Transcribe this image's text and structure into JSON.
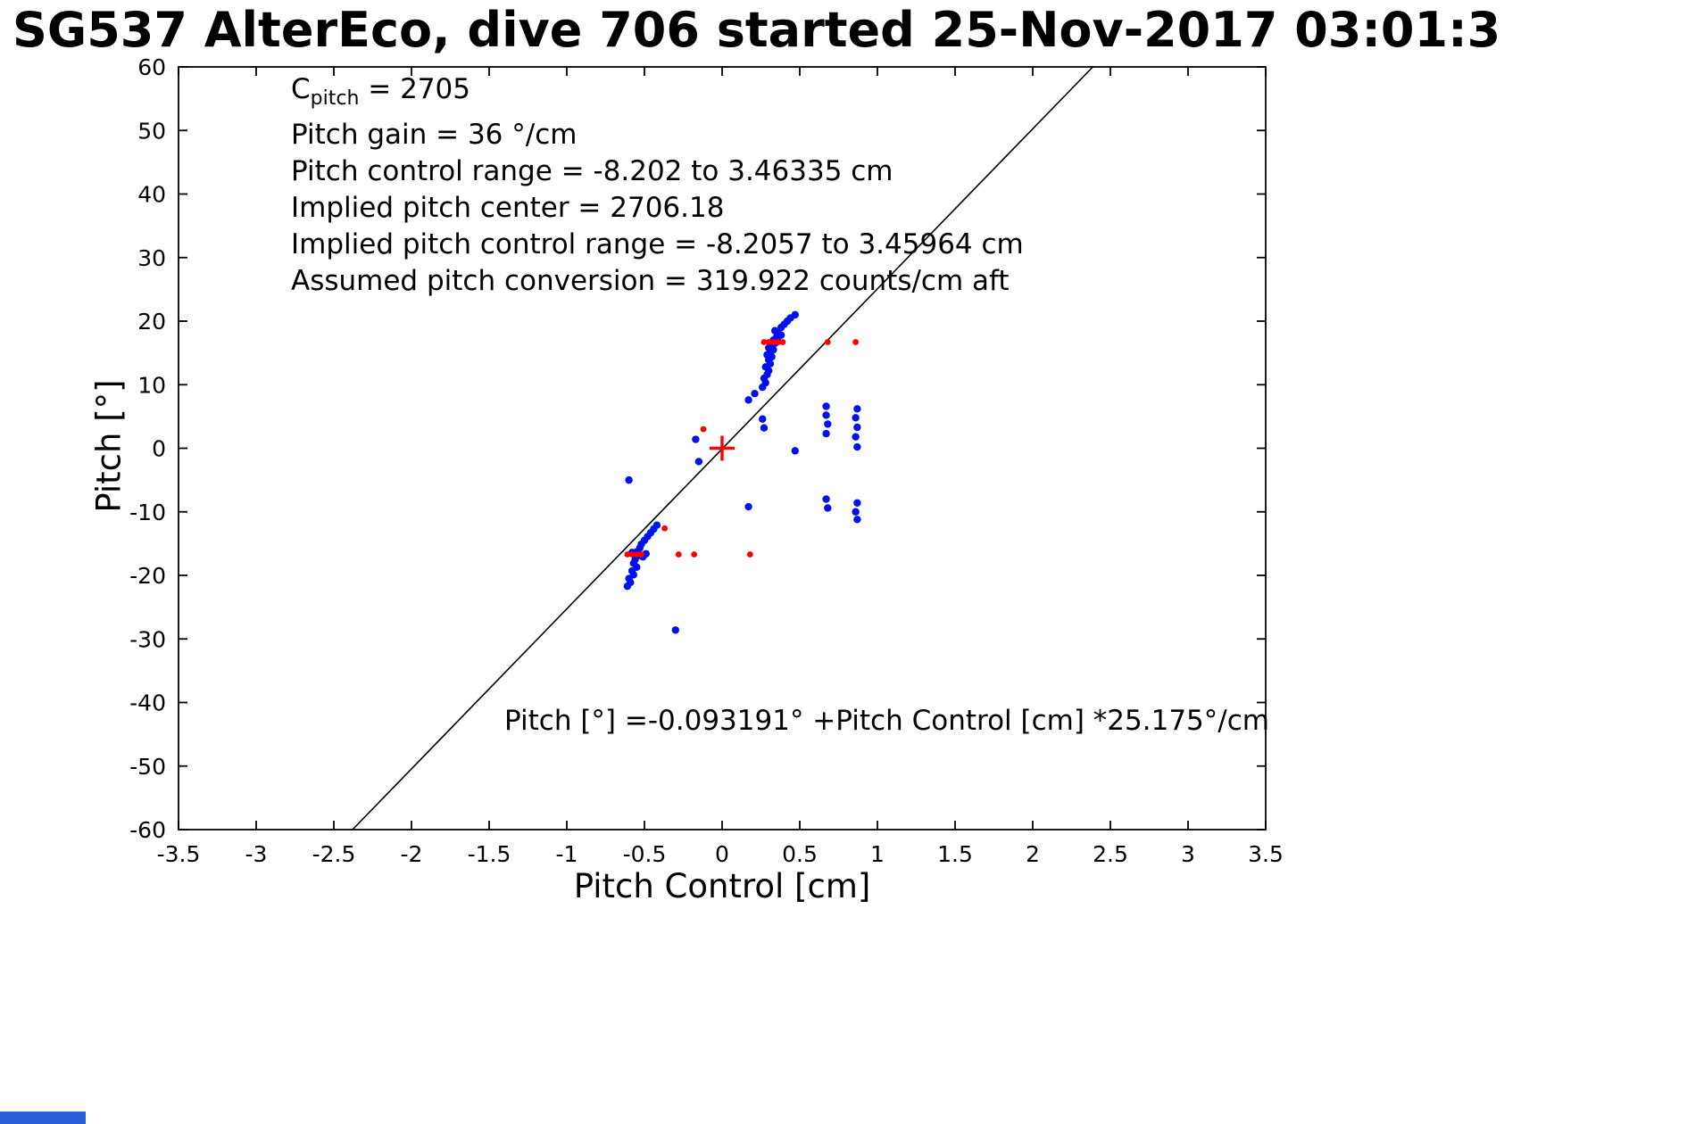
{
  "ui": {
    "background_color": "#ffffff",
    "corner_fragment_color": "#2a5ed9"
  },
  "chart_data": {
    "type": "scatter",
    "title": "SG537 AlterEco, dive 706 started 25-Nov-2017 03:01:3",
    "xlabel": "Pitch Control [cm]",
    "ylabel": "Pitch [°]",
    "xlim": [
      -3.5,
      3.5
    ],
    "ylim": [
      -60,
      60
    ],
    "xticks": [
      -3.5,
      -3,
      -2.5,
      -2,
      -1.5,
      -1,
      -0.5,
      0,
      0.5,
      1,
      1.5,
      2,
      2.5,
      3,
      3.5
    ],
    "yticks": [
      -60,
      -50,
      -40,
      -30,
      -20,
      -10,
      0,
      10,
      20,
      30,
      40,
      50,
      60
    ],
    "grid": false,
    "legend": "none",
    "annotations": {
      "c_pitch": {
        "base": "C",
        "sub": "pitch",
        "rest": " = 2705"
      },
      "lines": [
        "Pitch gain = 36 °/cm",
        "Pitch control range = -8.202 to 3.46335 cm",
        "Implied pitch center = 2706.18",
        "Implied pitch control range = -8.2057 to 3.45964 cm",
        "Assumed pitch conversion = 319.922 counts/cm aft"
      ]
    },
    "equation_text": "Pitch [°] =-0.093191° +Pitch Control [cm] *25.175°/cm",
    "fit_line": {
      "slope_deg_per_cm": 25.175,
      "intercept_deg": -0.093191,
      "color": "#000000"
    },
    "series": [
      {
        "name": "pitch-observations",
        "marker": "dot",
        "color": "#0010ee",
        "points": [
          [
            0.26,
            9.6
          ],
          [
            0.28,
            10.3
          ],
          [
            0.27,
            11.0
          ],
          [
            0.29,
            11.6
          ],
          [
            0.3,
            12.2
          ],
          [
            0.28,
            12.8
          ],
          [
            0.31,
            13.3
          ],
          [
            0.3,
            13.9
          ],
          [
            0.32,
            14.4
          ],
          [
            0.31,
            15.0
          ],
          [
            0.33,
            15.5
          ],
          [
            0.32,
            16.0
          ],
          [
            0.34,
            16.5
          ],
          [
            0.33,
            17.0
          ],
          [
            0.35,
            17.5
          ],
          [
            0.36,
            18.0
          ],
          [
            0.34,
            18.5
          ],
          [
            0.38,
            19.0
          ],
          [
            0.4,
            19.5
          ],
          [
            0.42,
            20.0
          ],
          [
            0.44,
            20.5
          ],
          [
            0.47,
            21.0
          ],
          [
            0.36,
            16.8
          ],
          [
            0.38,
            17.8
          ],
          [
            0.3,
            15.8
          ],
          [
            0.29,
            14.7
          ],
          [
            0.17,
            7.6
          ],
          [
            0.21,
            8.6
          ],
          [
            0.26,
            4.6
          ],
          [
            0.27,
            3.2
          ],
          [
            -0.17,
            1.4
          ],
          [
            -0.15,
            -2.1
          ],
          [
            0.47,
            -0.4
          ],
          [
            0.17,
            -9.2
          ],
          [
            0.67,
            6.6
          ],
          [
            0.67,
            5.2
          ],
          [
            0.68,
            3.8
          ],
          [
            0.67,
            2.3
          ],
          [
            0.67,
            -8.0
          ],
          [
            0.68,
            -9.4
          ],
          [
            0.87,
            6.2
          ],
          [
            0.86,
            4.8
          ],
          [
            0.87,
            3.3
          ],
          [
            0.86,
            1.8
          ],
          [
            0.87,
            0.2
          ],
          [
            0.87,
            -8.6
          ],
          [
            0.86,
            -10.0
          ],
          [
            0.87,
            -11.2
          ],
          [
            -0.42,
            -12.1
          ],
          [
            -0.44,
            -12.7
          ],
          [
            -0.46,
            -13.3
          ],
          [
            -0.48,
            -13.9
          ],
          [
            -0.5,
            -14.5
          ],
          [
            -0.52,
            -15.1
          ],
          [
            -0.53,
            -15.7
          ],
          [
            -0.55,
            -16.3
          ],
          [
            -0.54,
            -16.9
          ],
          [
            -0.56,
            -17.5
          ],
          [
            -0.57,
            -18.1
          ],
          [
            -0.55,
            -18.7
          ],
          [
            -0.58,
            -19.3
          ],
          [
            -0.57,
            -19.9
          ],
          [
            -0.6,
            -20.5
          ],
          [
            -0.59,
            -21.1
          ],
          [
            -0.61,
            -21.7
          ],
          [
            -0.49,
            -16.6
          ],
          [
            -0.51,
            -17.1
          ],
          [
            -0.58,
            -16.4
          ],
          [
            -0.6,
            -5.0
          ],
          [
            -0.3,
            -28.6
          ]
        ]
      },
      {
        "name": "flagged-observations",
        "marker": "dot",
        "color": "#ff0000",
        "points": [
          [
            0.27,
            16.7
          ],
          [
            0.3,
            16.7
          ],
          [
            0.33,
            16.7
          ],
          [
            0.36,
            16.7
          ],
          [
            0.39,
            16.7
          ],
          [
            0.68,
            16.7
          ],
          [
            0.86,
            16.7
          ],
          [
            -0.12,
            3.0
          ],
          [
            -0.61,
            -16.7
          ],
          [
            -0.58,
            -16.7
          ],
          [
            -0.55,
            -16.7
          ],
          [
            -0.52,
            -16.7
          ],
          [
            -0.37,
            -12.6
          ],
          [
            -0.28,
            -16.7
          ],
          [
            -0.18,
            -16.7
          ],
          [
            0.18,
            -16.7
          ]
        ]
      },
      {
        "name": "implied-pitch-center",
        "marker": "plus",
        "color": "#ff0000",
        "points": [
          [
            0,
            0
          ]
        ]
      }
    ]
  }
}
